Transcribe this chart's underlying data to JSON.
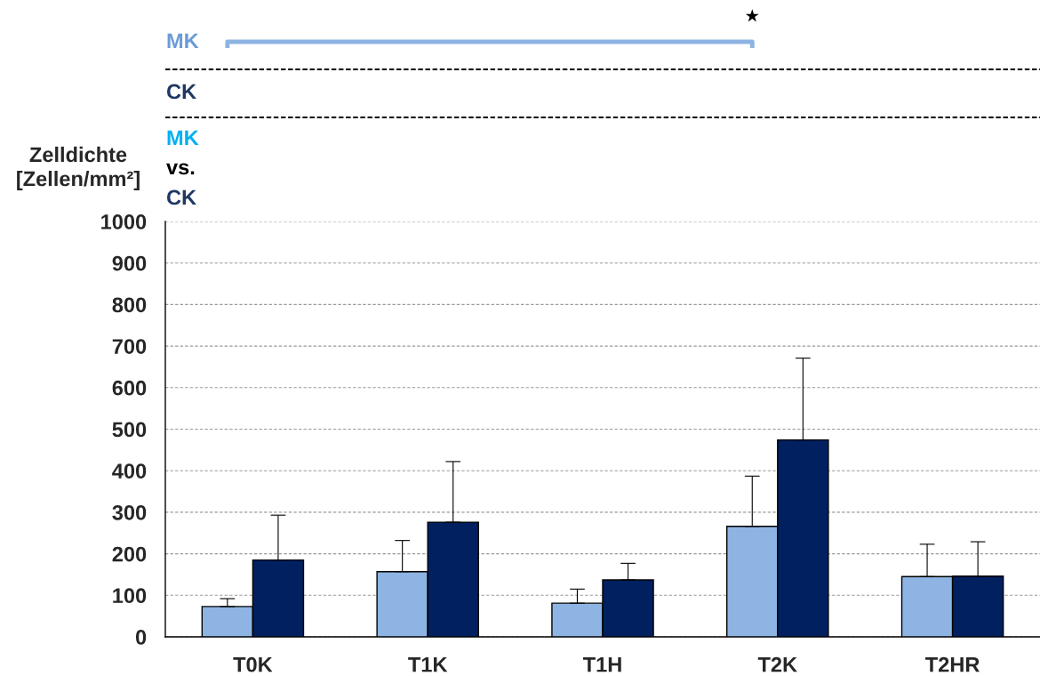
{
  "chart_data": {
    "type": "bar",
    "ylabel": "Zelldichte\n[Zellen/mm²]",
    "categories": [
      "T0K",
      "T1K",
      "T1H",
      "T2K",
      "T2HR"
    ],
    "series": [
      {
        "color": "#8eb4e3",
        "values": [
          73,
          157,
          81,
          266,
          145
        ],
        "errors": [
          [
            73,
            92
          ],
          [
            157,
            232
          ],
          [
            81,
            115
          ],
          [
            266,
            387
          ],
          [
            145,
            223
          ]
        ]
      },
      {
        "color": "#002060",
        "values": [
          185,
          276,
          137,
          474,
          146
        ],
        "errors": [
          [
            185,
            293
          ],
          [
            276,
            422
          ],
          [
            137,
            177
          ],
          [
            474,
            671
          ],
          [
            146,
            229
          ]
        ]
      }
    ],
    "ylim": [
      0,
      1000
    ],
    "yticks": [
      0,
      100,
      200,
      300,
      400,
      500,
      600,
      700,
      800,
      900,
      1000
    ],
    "grid": "y",
    "annotations": [
      "MK",
      "★",
      "CK",
      "MK",
      "vs.",
      "CK"
    ]
  }
}
